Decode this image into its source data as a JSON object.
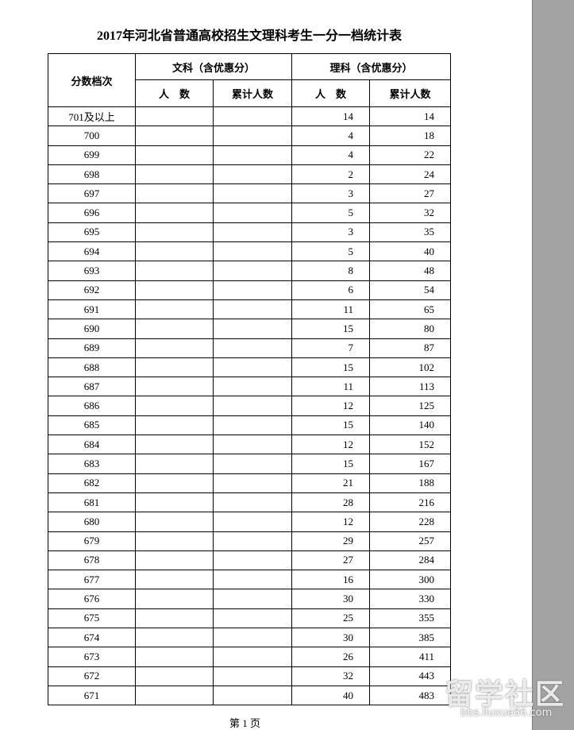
{
  "title": "2017年河北省普通高校招生文理科考生一分一档统计表",
  "header": {
    "score": "分数档次",
    "liberal_arts": "文科（含优惠分）",
    "science": "理科（含优惠分）",
    "sub_columns": [
      "人　数",
      "累计人数",
      "人　数",
      "累计人数"
    ]
  },
  "table": {
    "rows": [
      {
        "score": "701及以上",
        "science": [
          14,
          14
        ]
      },
      {
        "score": "700",
        "science": [
          4,
          18
        ]
      },
      {
        "score": "699",
        "science": [
          4,
          22
        ]
      },
      {
        "score": "698",
        "science": [
          2,
          24
        ]
      },
      {
        "score": "697",
        "science": [
          3,
          27
        ]
      },
      {
        "score": "696",
        "science": [
          5,
          32
        ]
      },
      {
        "score": "695",
        "science": [
          3,
          35
        ]
      },
      {
        "score": "694",
        "science": [
          5,
          40
        ]
      },
      {
        "score": "693",
        "science": [
          8,
          48
        ]
      },
      {
        "score": "692",
        "science": [
          6,
          54
        ]
      },
      {
        "score": "691",
        "science": [
          11,
          65
        ]
      },
      {
        "score": "690",
        "science": [
          15,
          80
        ]
      },
      {
        "score": "689",
        "science": [
          7,
          87
        ]
      },
      {
        "score": "688",
        "science": [
          15,
          102
        ]
      },
      {
        "score": "687",
        "science": [
          11,
          113
        ]
      },
      {
        "score": "686",
        "science": [
          12,
          125
        ]
      },
      {
        "score": "685",
        "science": [
          15,
          140
        ]
      },
      {
        "score": "684",
        "science": [
          12,
          152
        ]
      },
      {
        "score": "683",
        "science": [
          15,
          167
        ]
      },
      {
        "score": "682",
        "science": [
          21,
          188
        ]
      },
      {
        "score": "681",
        "science": [
          28,
          216
        ]
      },
      {
        "score": "680",
        "science": [
          12,
          228
        ]
      },
      {
        "score": "679",
        "science": [
          29,
          257
        ]
      },
      {
        "score": "678",
        "science": [
          27,
          284
        ]
      },
      {
        "score": "677",
        "science": [
          16,
          300
        ]
      },
      {
        "score": "676",
        "science": [
          30,
          330
        ]
      },
      {
        "score": "675",
        "science": [
          25,
          355
        ]
      },
      {
        "score": "674",
        "science": [
          30,
          385
        ]
      },
      {
        "score": "673",
        "science": [
          26,
          411
        ]
      },
      {
        "score": "672",
        "science": [
          32,
          443
        ]
      },
      {
        "score": "671",
        "science": [
          40,
          483
        ]
      }
    ]
  },
  "footer": "第 1 页",
  "watermark": {
    "name": "留学社区",
    "url": "bbs.liuxue86.com"
  }
}
